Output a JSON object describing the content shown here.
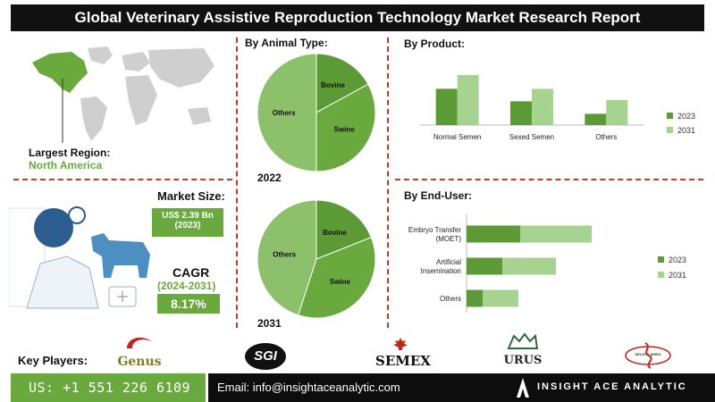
{
  "header": {
    "title": "Global Veterinary Assistive Reproduction Technology Market Research Report"
  },
  "region": {
    "label": "Largest Region:",
    "value": "North America"
  },
  "market_size": {
    "label": "Market Size:",
    "value": "US$ 2.39 Bn",
    "year": "(2023)"
  },
  "cagr": {
    "label": "CAGR",
    "period": "(2024-2031)",
    "value": "8.17%"
  },
  "sections": {
    "animal_type": "By Animal Type:",
    "product": "By  Product:",
    "end_user": "By End-User:"
  },
  "key_players": {
    "label": "Key Players:",
    "logos": [
      "Genus",
      "SGI",
      "SEMEX",
      "URUS",
      "SELECT SIRES"
    ]
  },
  "footer": {
    "phone": "US: +1 551 226 6109",
    "email": "Email: info@insightaceanalytic.com",
    "brand": "INSIGHT ACE ANALYTIC"
  },
  "colors": {
    "dark_green": "#5b9a34",
    "light_green": "#a6d490",
    "mid_green": "#8cc06a",
    "accent_red": "#c0392b"
  },
  "chart_data": [
    {
      "type": "pie",
      "title": "2022",
      "labels": [
        "Bovine",
        "Swine",
        "Others"
      ],
      "values": [
        17,
        33,
        50
      ],
      "colors": [
        "#5b9a34",
        "#6aa93e",
        "#8cc06a"
      ]
    },
    {
      "type": "pie",
      "title": "2031",
      "labels": [
        "Bovine",
        "Swine",
        "Others"
      ],
      "values": [
        19,
        36,
        45
      ],
      "colors": [
        "#5b9a34",
        "#6aa93e",
        "#8cc06a"
      ]
    },
    {
      "type": "bar",
      "orientation": "vertical",
      "categories": [
        "Normal Semen",
        "Sexed Semen",
        "Others"
      ],
      "series": [
        {
          "name": "2023",
          "values": [
            58,
            38,
            18
          ],
          "color": "#5b9a34"
        },
        {
          "name": "2031",
          "values": [
            80,
            58,
            40
          ],
          "color": "#a6d490"
        }
      ],
      "ylim": [
        0,
        100
      ],
      "legend": "right"
    },
    {
      "type": "bar",
      "orientation": "horizontal",
      "stacked": true,
      "categories": [
        "Embryo Transfer (MOET)",
        "Artificial Insemination",
        "Others"
      ],
      "series": [
        {
          "name": "2023",
          "values": [
            60,
            40,
            18
          ],
          "color": "#5b9a34"
        },
        {
          "name": "2031",
          "values": [
            80,
            60,
            40
          ],
          "color": "#a6d490"
        }
      ],
      "xlim": [
        0,
        200
      ],
      "legend": "right"
    }
  ]
}
